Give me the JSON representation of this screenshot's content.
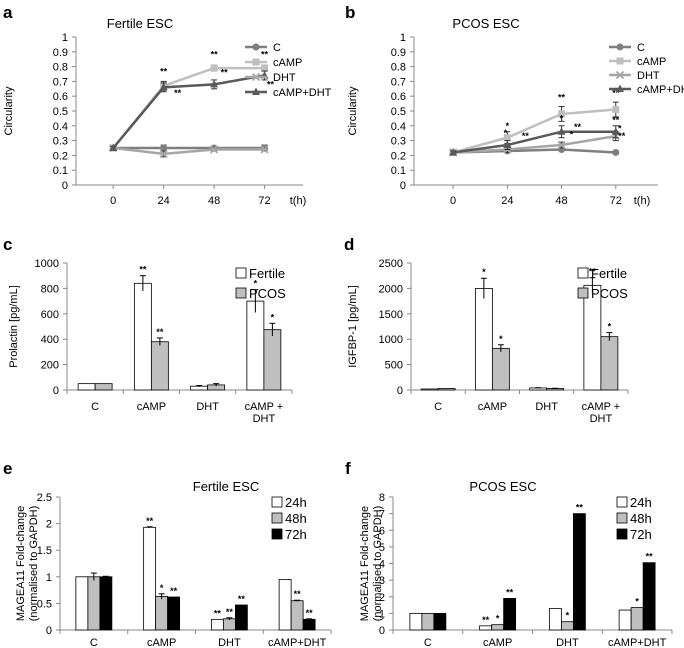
{
  "panels": [
    {
      "letter": "a",
      "type": "line",
      "title": "Fertile ESC",
      "ylabel": "Circularity",
      "xlabel_unit": "t(h)",
      "x": [
        0,
        24,
        48,
        72
      ],
      "x_ticks": [
        "0",
        "24",
        "48",
        "72"
      ],
      "ylim": [
        0,
        1
      ],
      "y_ticks": [
        "0",
        "0.1",
        "0.2",
        "0.3",
        "0.4",
        "0.5",
        "0.6",
        "0.7",
        "0.8",
        "0.9",
        "1"
      ],
      "series": [
        {
          "name": "C",
          "color": "#7f7f7f",
          "marker": "circle",
          "values": [
            0.25,
            0.25,
            0.25,
            0.25
          ],
          "errors": [
            0.01,
            0.02,
            0.01,
            0.02
          ]
        },
        {
          "name": "cAMP",
          "color": "#bfbfbf",
          "marker": "square",
          "values": [
            0.25,
            0.67,
            0.79,
            0.79
          ],
          "errors": [
            0.01,
            0.03,
            0.02,
            0.02
          ]
        },
        {
          "name": "DHT",
          "color": "#a6a6a6",
          "marker": "x",
          "values": [
            0.25,
            0.21,
            0.24,
            0.24
          ],
          "errors": [
            0.01,
            0.02,
            0.01,
            0.01
          ]
        },
        {
          "name": "cAMP+DHT",
          "color": "#595959",
          "marker": "triangle",
          "values": [
            0.25,
            0.66,
            0.68,
            0.74
          ],
          "errors": [
            0.01,
            0.03,
            0.03,
            0.03
          ]
        }
      ],
      "annotations": [
        {
          "x": 24,
          "y": 0.745,
          "text": "**"
        },
        {
          "x": 24,
          "y": 0.6,
          "text": "**",
          "dx": 14
        },
        {
          "x": 48,
          "y": 0.86,
          "text": "**"
        },
        {
          "x": 48,
          "y": 0.74,
          "text": "**",
          "dx": 10
        },
        {
          "x": 72,
          "y": 0.86,
          "text": "**"
        },
        {
          "x": 72,
          "y": 0.66,
          "text": "**",
          "dx": 6
        }
      ]
    },
    {
      "letter": "b",
      "type": "line",
      "title": "PCOS ESC",
      "ylabel": "Circularity",
      "xlabel_unit": "t(h)",
      "x": [
        0,
        24,
        48,
        72
      ],
      "x_ticks": [
        "0",
        "24",
        "48",
        "72"
      ],
      "ylim": [
        0,
        1
      ],
      "y_ticks": [
        "0",
        "0.1",
        "0.2",
        "0.3",
        "0.4",
        "0.5",
        "0.6",
        "0.7",
        "0.8",
        "0.9",
        "1"
      ],
      "series": [
        {
          "name": "C",
          "color": "#7f7f7f",
          "marker": "circle",
          "values": [
            0.22,
            0.23,
            0.24,
            0.22
          ],
          "errors": [
            0.01,
            0.01,
            0.01,
            0.01
          ]
        },
        {
          "name": "cAMP",
          "color": "#bfbfbf",
          "marker": "square",
          "values": [
            0.22,
            0.32,
            0.48,
            0.51
          ],
          "errors": [
            0.01,
            0.04,
            0.05,
            0.05
          ]
        },
        {
          "name": "DHT",
          "color": "#a6a6a6",
          "marker": "x",
          "values": [
            0.22,
            0.24,
            0.27,
            0.33
          ],
          "errors": [
            0.01,
            0.02,
            0.02,
            0.03
          ]
        },
        {
          "name": "cAMP+DHT",
          "color": "#595959",
          "marker": "triangle",
          "values": [
            0.22,
            0.27,
            0.36,
            0.36
          ],
          "errors": [
            0.01,
            0.03,
            0.04,
            0.04
          ]
        }
      ],
      "annotations": [
        {
          "x": 24,
          "y": 0.38,
          "text": "*"
        },
        {
          "x": 24,
          "y": 0.33,
          "text": "*",
          "dx": -2
        },
        {
          "x": 24,
          "y": 0.31,
          "text": "**",
          "dx": 18
        },
        {
          "x": 48,
          "y": 0.57,
          "text": "**"
        },
        {
          "x": 48,
          "y": 0.43,
          "text": "*"
        },
        {
          "x": 48,
          "y": 0.37,
          "text": "**",
          "dx": 16
        },
        {
          "x": 48,
          "y": 0.32,
          "text": "*",
          "dx": 10
        },
        {
          "x": 72,
          "y": 0.6,
          "text": "**"
        },
        {
          "x": 72,
          "y": 0.42,
          "text": "**"
        },
        {
          "x": 72,
          "y": 0.36,
          "text": "*",
          "dx": 4
        },
        {
          "x": 72,
          "y": 0.31,
          "text": "**",
          "dx": 6
        }
      ]
    },
    {
      "letter": "c",
      "type": "bar",
      "title": "",
      "ylabel": "Prolactin [pg/mL]",
      "categories": [
        "C",
        "cAMP",
        "DHT",
        "cAMP +\nDHT"
      ],
      "ylim": [
        0,
        1000
      ],
      "y_ticks": [
        "0",
        "200",
        "400",
        "600",
        "800",
        "1000"
      ],
      "series": [
        {
          "name": "Fertile",
          "color": "#ffffff",
          "values": [
            50,
            840,
            30,
            700
          ],
          "errors": [
            0,
            60,
            5,
            90
          ],
          "sig": [
            "",
            "**",
            "",
            "*"
          ]
        },
        {
          "name": "PCOS",
          "color": "#bfbfbf",
          "values": [
            50,
            380,
            40,
            475
          ],
          "errors": [
            0,
            30,
            10,
            50
          ],
          "sig": [
            "",
            "**",
            "",
            "*"
          ]
        }
      ]
    },
    {
      "letter": "d",
      "type": "bar",
      "title": "",
      "ylabel": "IGFBP-1 [pg/mL]",
      "categories": [
        "C",
        "cAMP",
        "DHT",
        "cAMP +\nDHT"
      ],
      "ylim": [
        0,
        2500
      ],
      "y_ticks": [
        "0",
        "500",
        "1000",
        "1500",
        "2000",
        "2500"
      ],
      "series": [
        {
          "name": "Fertile",
          "color": "#ffffff",
          "values": [
            20,
            2000,
            40,
            2060
          ],
          "errors": [
            0,
            200,
            5,
            150
          ],
          "sig": [
            "",
            "*",
            "",
            "**"
          ]
        },
        {
          "name": "PCOS",
          "color": "#bfbfbf",
          "values": [
            30,
            820,
            30,
            1050
          ],
          "errors": [
            0,
            70,
            5,
            80
          ],
          "sig": [
            "",
            "*",
            "",
            "*"
          ]
        }
      ]
    },
    {
      "letter": "e",
      "type": "bar",
      "title": "Fertile ESC",
      "ylabel": "MAGEA11 Fold-change\n(normalised to GAPDH)",
      "categories": [
        "C",
        "cAMP",
        "DHT",
        "cAMP+DHT"
      ],
      "ylim": [
        0,
        2.5
      ],
      "y_ticks": [
        "0",
        "0.5",
        "1",
        "1.5",
        "2",
        "2.5"
      ],
      "series": [
        {
          "name": "24h",
          "color": "#ffffff",
          "values": [
            1.0,
            1.93,
            0.2,
            0.95
          ],
          "errors": [
            0,
            0.01,
            0,
            0
          ],
          "sig": [
            "",
            "**",
            "**",
            ""
          ]
        },
        {
          "name": "48h",
          "color": "#bfbfbf",
          "values": [
            1.0,
            0.63,
            0.21,
            0.55
          ],
          "errors": [
            0.07,
            0.05,
            0.02,
            0.01
          ],
          "sig": [
            "",
            "*",
            "**",
            "**"
          ]
        },
        {
          "name": "72h",
          "color": "#000000",
          "values": [
            1.0,
            0.62,
            0.47,
            0.2
          ],
          "errors": [
            0.01,
            0,
            0,
            0.01
          ],
          "sig": [
            "",
            "**",
            "**",
            "**"
          ]
        }
      ]
    },
    {
      "letter": "f",
      "type": "bar",
      "title": "PCOS ESC",
      "ylabel": "MAGEA11 Fold-change\n(normalised to GAPDH)",
      "categories": [
        "C",
        "cAMP",
        "DHT",
        "cAMP+DHT"
      ],
      "ylim": [
        0,
        8
      ],
      "y_ticks": [
        "0",
        "1",
        "2",
        "3",
        "4",
        "5",
        "6",
        "7",
        "8"
      ],
      "series": [
        {
          "name": "24h",
          "color": "#ffffff",
          "values": [
            1.0,
            0.25,
            1.3,
            1.2
          ],
          "errors": [
            0,
            0,
            0,
            0
          ],
          "sig": [
            "",
            "**",
            "",
            ""
          ]
        },
        {
          "name": "48h",
          "color": "#bfbfbf",
          "values": [
            1.0,
            0.32,
            0.5,
            1.35
          ],
          "errors": [
            0,
            0,
            0,
            0
          ],
          "sig": [
            "",
            "*",
            "*",
            "*"
          ]
        },
        {
          "name": "72h",
          "color": "#000000",
          "values": [
            1.0,
            1.9,
            7.0,
            4.05
          ],
          "errors": [
            0,
            0,
            0,
            0
          ],
          "sig": [
            "",
            "**",
            "**",
            "**"
          ]
        }
      ]
    }
  ]
}
